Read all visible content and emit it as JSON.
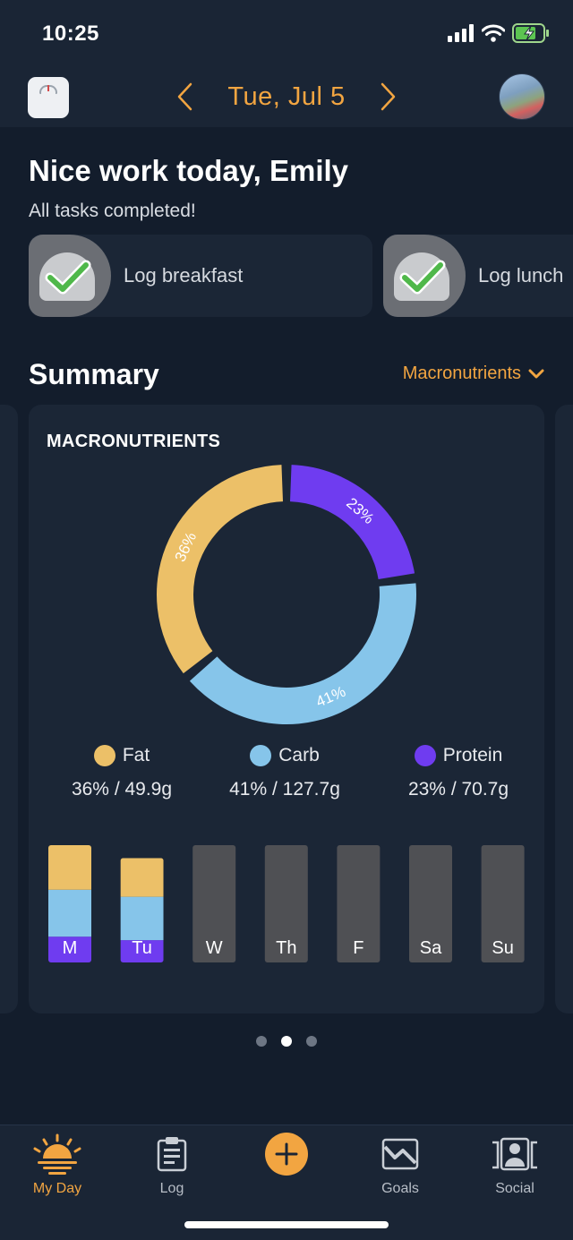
{
  "status": {
    "time": "10:25"
  },
  "header": {
    "date": "Tue, Jul 5"
  },
  "greeting": {
    "title": "Nice work today, Emily",
    "subtitle": "All tasks completed!"
  },
  "tasks": [
    {
      "label": "Log breakfast",
      "completed": true
    },
    {
      "label": "Log lunch",
      "completed": true
    }
  ],
  "summary": {
    "title": "Summary",
    "dropdown_label": "Macronutrients"
  },
  "colors": {
    "fat": "#ecc068",
    "carb": "#86c5ea",
    "protein": "#6f3cf0",
    "accent": "#f2a541",
    "empty_bar": "#4f5054"
  },
  "chart_data": {
    "type": "pie",
    "title": "MACRONUTRIENTS",
    "slices": [
      {
        "name": "Fat",
        "percent": 36,
        "label": "36%",
        "grams": "49.9g",
        "value_text": "36% / 49.9g"
      },
      {
        "name": "Carb",
        "percent": 41,
        "label": "41%",
        "grams": "127.7g",
        "value_text": "41% / 127.7g"
      },
      {
        "name": "Protein",
        "percent": 23,
        "label": "23%",
        "grams": "70.7g",
        "value_text": "23% / 70.7g"
      }
    ],
    "weekly": {
      "days": [
        "M",
        "Tu",
        "W",
        "Th",
        "F",
        "Sa",
        "Su"
      ],
      "fat": [
        0.38,
        0.33,
        0,
        0,
        0,
        0,
        0
      ],
      "carb": [
        0.4,
        0.37,
        0,
        0,
        0,
        0,
        0
      ],
      "protein": [
        0.22,
        0.19,
        0,
        0,
        0,
        0,
        0
      ],
      "totals": [
        1.0,
        0.89,
        0,
        0,
        0,
        0,
        0
      ]
    }
  },
  "pager": {
    "count": 3,
    "active": 1
  },
  "tabbar": {
    "my_day": "My Day",
    "log": "Log",
    "goals": "Goals",
    "social": "Social"
  }
}
